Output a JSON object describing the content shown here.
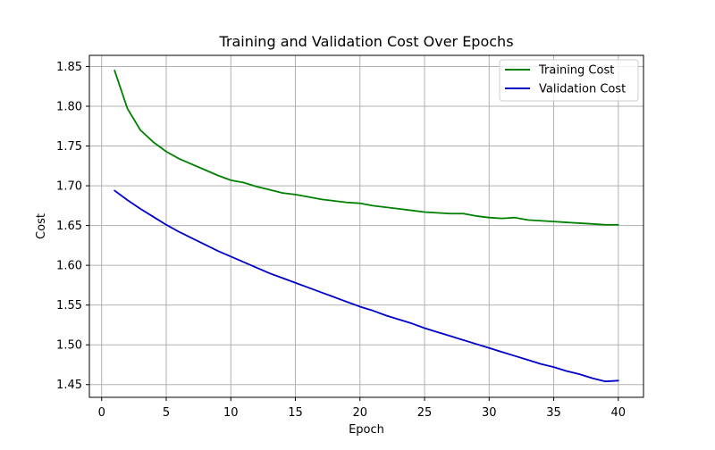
{
  "chart_data": {
    "type": "line",
    "title": "Training and Validation Cost Over Epochs",
    "xlabel": "Epoch",
    "ylabel": "Cost",
    "xlim": [
      -0.95,
      41.95
    ],
    "ylim": [
      1.434,
      1.864
    ],
    "xticks": [
      0,
      5,
      10,
      15,
      20,
      25,
      30,
      35,
      40
    ],
    "yticks": [
      1.45,
      1.5,
      1.55,
      1.6,
      1.65,
      1.7,
      1.75,
      1.8,
      1.85
    ],
    "xtick_labels": [
      "0",
      "5",
      "10",
      "15",
      "20",
      "25",
      "30",
      "35",
      "40"
    ],
    "ytick_labels": [
      "1.45",
      "1.50",
      "1.55",
      "1.60",
      "1.65",
      "1.70",
      "1.75",
      "1.80",
      "1.85"
    ],
    "grid": true,
    "legend_position": "top-right",
    "x": [
      1,
      2,
      3,
      4,
      5,
      6,
      7,
      8,
      9,
      10,
      11,
      12,
      13,
      14,
      15,
      16,
      17,
      18,
      19,
      20,
      21,
      22,
      23,
      24,
      25,
      26,
      27,
      28,
      29,
      30,
      31,
      32,
      33,
      34,
      35,
      36,
      37,
      38,
      39,
      40
    ],
    "series": [
      {
        "name": "Training Cost",
        "color": "#008000",
        "values": [
          1.845,
          1.797,
          1.77,
          1.755,
          1.743,
          1.734,
          1.727,
          1.72,
          1.713,
          1.707,
          1.704,
          1.699,
          1.695,
          1.691,
          1.689,
          1.686,
          1.683,
          1.681,
          1.679,
          1.678,
          1.675,
          1.673,
          1.671,
          1.669,
          1.667,
          1.666,
          1.665,
          1.665,
          1.662,
          1.66,
          1.659,
          1.66,
          1.657,
          1.656,
          1.655,
          1.654,
          1.653,
          1.652,
          1.651,
          1.651
        ]
      },
      {
        "name": "Validation Cost",
        "color": "#0000cc",
        "values": [
          1.694,
          1.682,
          1.671,
          1.661,
          1.651,
          1.642,
          1.634,
          1.626,
          1.618,
          1.611,
          1.604,
          1.597,
          1.59,
          1.584,
          1.578,
          1.572,
          1.566,
          1.56,
          1.554,
          1.548,
          1.543,
          1.537,
          1.532,
          1.527,
          1.521,
          1.516,
          1.511,
          1.506,
          1.501,
          1.496,
          1.491,
          1.486,
          1.481,
          1.476,
          1.472,
          1.467,
          1.463,
          1.458,
          1.454,
          1.455
        ]
      }
    ]
  }
}
